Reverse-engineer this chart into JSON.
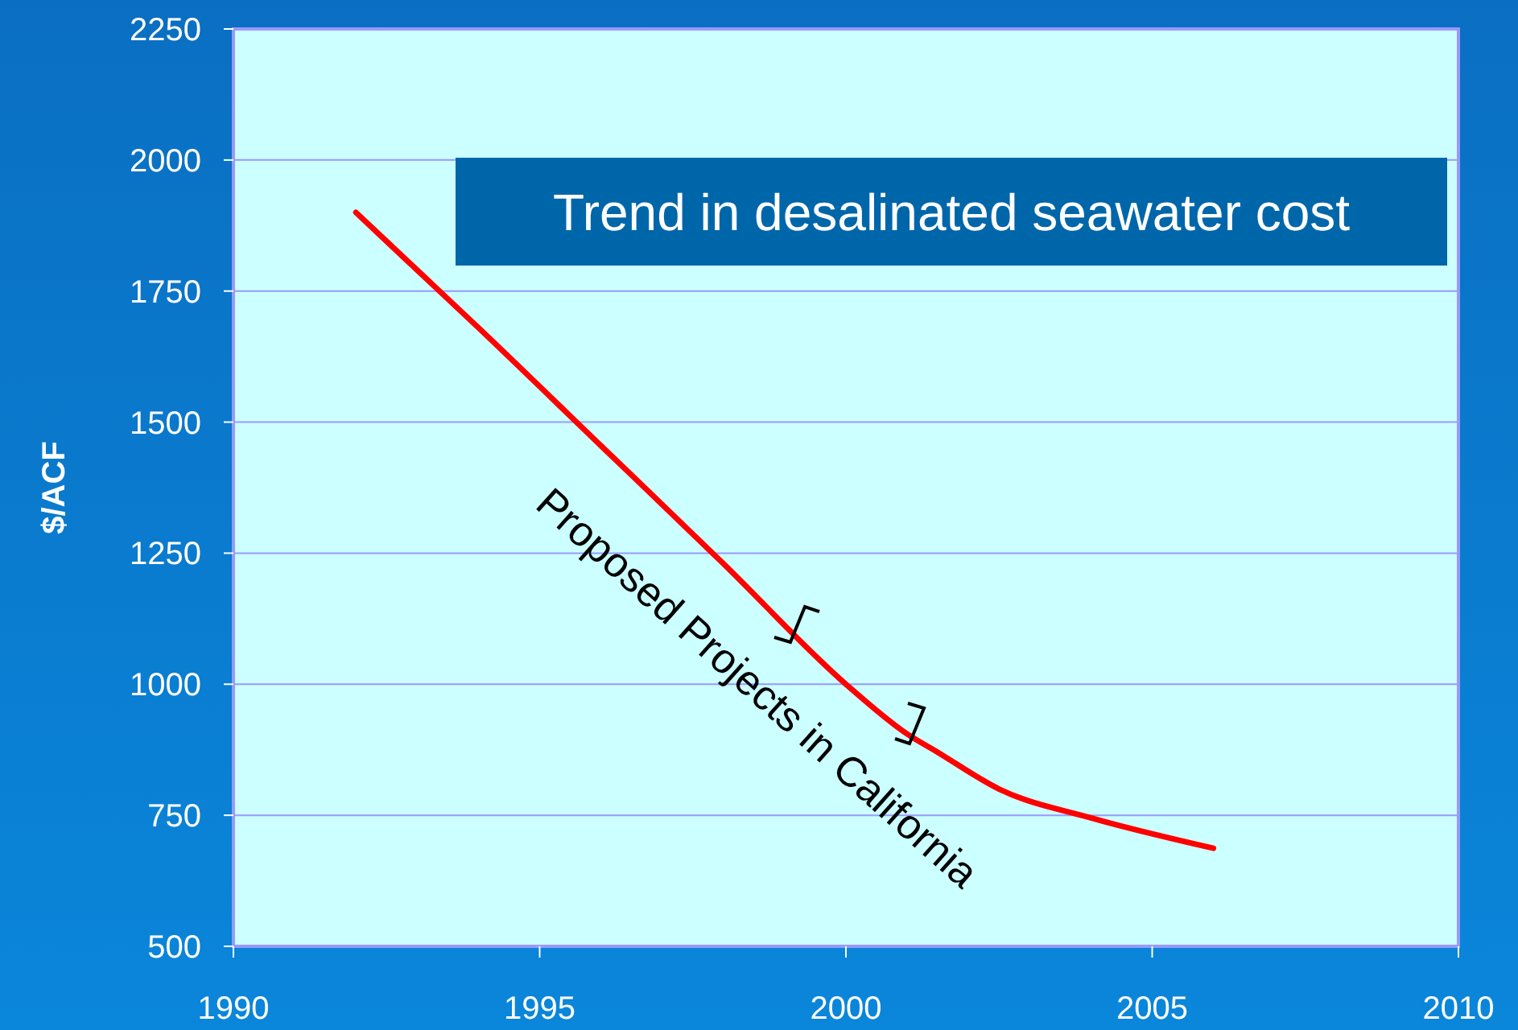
{
  "chart_data": {
    "type": "line",
    "title": "Trend in desalinated seawater cost",
    "ylabel": "$/ACF",
    "x": [
      1992,
      1993,
      1994,
      1996,
      1998,
      2000,
      2001,
      2001.5,
      2002.5,
      2004,
      2006
    ],
    "series": [
      {
        "color": "#ff0000",
        "values": [
          1900,
          1790,
          1680,
          1455,
          1230,
          1000,
          905,
          870,
          800,
          745,
          687
        ]
      }
    ],
    "xlim": [
      1990,
      2010
    ],
    "xticks": [
      1990,
      1995,
      2000,
      2005,
      2010
    ],
    "ylim": [
      500,
      2250
    ],
    "yticks": [
      500,
      750,
      1000,
      1250,
      1500,
      1750,
      2000,
      2250
    ],
    "grid": "y",
    "marker": "none",
    "line_style": "solid",
    "annotations": [
      "Proposed Projects in California"
    ]
  }
}
